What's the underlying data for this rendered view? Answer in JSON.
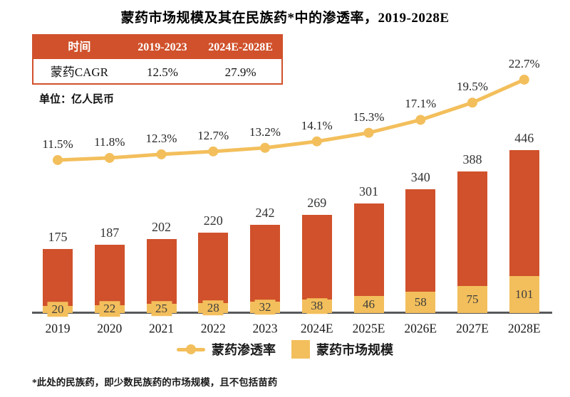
{
  "title": "蒙药市场规模及其在民族药*中的渗透率，2019-2028E",
  "cagr_table": {
    "headers": [
      "时间",
      "2019-2023",
      "2024E-2028E"
    ],
    "row": [
      "蒙药CAGR",
      "12.5%",
      "27.9%"
    ]
  },
  "unit_label": "单位：亿人民币",
  "legend": {
    "line_label": "蒙药渗透率",
    "bar_label": "蒙药市场规模"
  },
  "footnote": "*此处的民族药，即少数民族药的市场规模，且不包括苗药",
  "colors": {
    "red": "#D0512B",
    "yellow": "#F3BF5C",
    "axis": "#58595B",
    "text": "#262626"
  },
  "chart_data": {
    "type": "bar+line combo (stacked bars, right-less percentage line)",
    "categories": [
      "2019",
      "2020",
      "2021",
      "2022",
      "2023",
      "2024E",
      "2025E",
      "2026E",
      "2027E",
      "2028E"
    ],
    "bar_total_values": [
      175,
      187,
      202,
      220,
      242,
      269,
      301,
      340,
      388,
      446
    ],
    "bar_yellow_values": [
      20,
      22,
      25,
      28,
      32,
      38,
      46,
      58,
      75,
      101
    ],
    "line_percent_values": [
      11.5,
      11.8,
      12.3,
      12.7,
      13.2,
      14.1,
      15.3,
      17.1,
      19.5,
      22.7
    ],
    "line_percent_labels": [
      "11.5%",
      "11.8%",
      "12.3%",
      "12.7%",
      "13.2%",
      "14.1%",
      "15.3%",
      "17.1%",
      "19.5%",
      "22.7%"
    ],
    "unit": "亿人民币",
    "grid": false,
    "y_axis_visible": false,
    "legend_position": "bottom-center"
  }
}
